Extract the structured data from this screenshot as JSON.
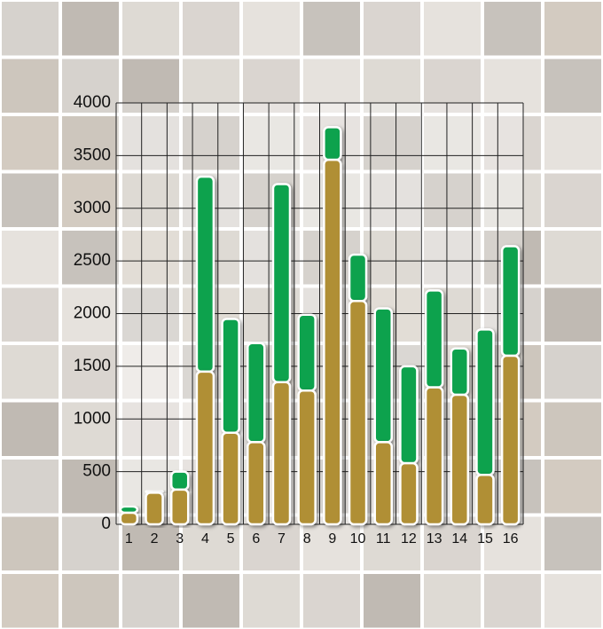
{
  "chart_data": {
    "type": "stacked_bar",
    "categories": [
      "1",
      "2",
      "3",
      "4",
      "5",
      "6",
      "7",
      "8",
      "9",
      "10",
      "11",
      "12",
      "13",
      "14",
      "15",
      "16"
    ],
    "series": [
      {
        "color": "#b08f35",
        "values": [
          110,
          300,
          330,
          1450,
          870,
          780,
          1350,
          1270,
          3460,
          2120,
          780,
          580,
          1300,
          1230,
          470,
          1600
        ]
      },
      {
        "color": "#0fa24e",
        "values": [
          60,
          20,
          170,
          1850,
          1080,
          940,
          1880,
          720,
          310,
          440,
          1270,
          920,
          920,
          440,
          1380,
          1040
        ]
      }
    ],
    "ylim": [
      0,
      4000
    ],
    "yticks": [
      0,
      500,
      1000,
      1500,
      2000,
      2500,
      3000,
      3500,
      4000
    ],
    "grid": true
  }
}
